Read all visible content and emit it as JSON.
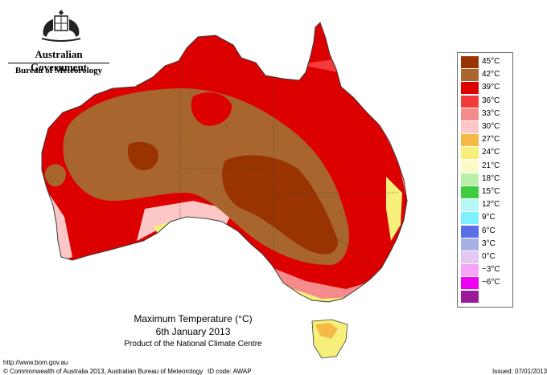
{
  "header": {
    "government": "Australian Government",
    "bureau": "Bureau of Meteorology"
  },
  "legend": {
    "items": [
      {
        "label": "45°C",
        "color": "#993300"
      },
      {
        "label": "42°C",
        "color": "#a8652d"
      },
      {
        "label": "39°C",
        "color": "#dd0000"
      },
      {
        "label": "36°C",
        "color": "#f23b3b"
      },
      {
        "label": "33°C",
        "color": "#f68b8b"
      },
      {
        "label": "30°C",
        "color": "#fbc7c7"
      },
      {
        "label": "27°C",
        "color": "#f5b945"
      },
      {
        "label": "24°C",
        "color": "#f6f07a"
      },
      {
        "label": "21°C",
        "color": "#fafac8"
      },
      {
        "label": "18°C",
        "color": "#b9f0a8"
      },
      {
        "label": "15°C",
        "color": "#3fcc3f"
      },
      {
        "label": "12°C",
        "color": "#b7f7f7"
      },
      {
        "label": "9°C",
        "color": "#7ff0ff"
      },
      {
        "label": "6°C",
        "color": "#5a6fe6"
      },
      {
        "label": "3°C",
        "color": "#a8b0e8"
      },
      {
        "label": "0°C",
        "color": "#e3c8f0"
      },
      {
        "label": "−3°C",
        "color": "#f7a3f7"
      },
      {
        "label": "−6°C",
        "color": "#f000f0"
      },
      {
        "label": "",
        "color": "#9a1a9a"
      }
    ]
  },
  "caption": {
    "title": "Maximum Temperature (°C)",
    "date": "6th January 2013",
    "product": "Product of the National Climate Centre"
  },
  "footer": {
    "url": "http://www.bom.gov.au",
    "copyright": "© Commonwealth of Australia 2013, Australian Bureau of Meteorology",
    "id_code": "ID code: AWAP",
    "issued": "Issued: 07/01/2013"
  },
  "map_colors": {
    "ocean": "#ffffff",
    "outline": "#3a3a3a"
  }
}
